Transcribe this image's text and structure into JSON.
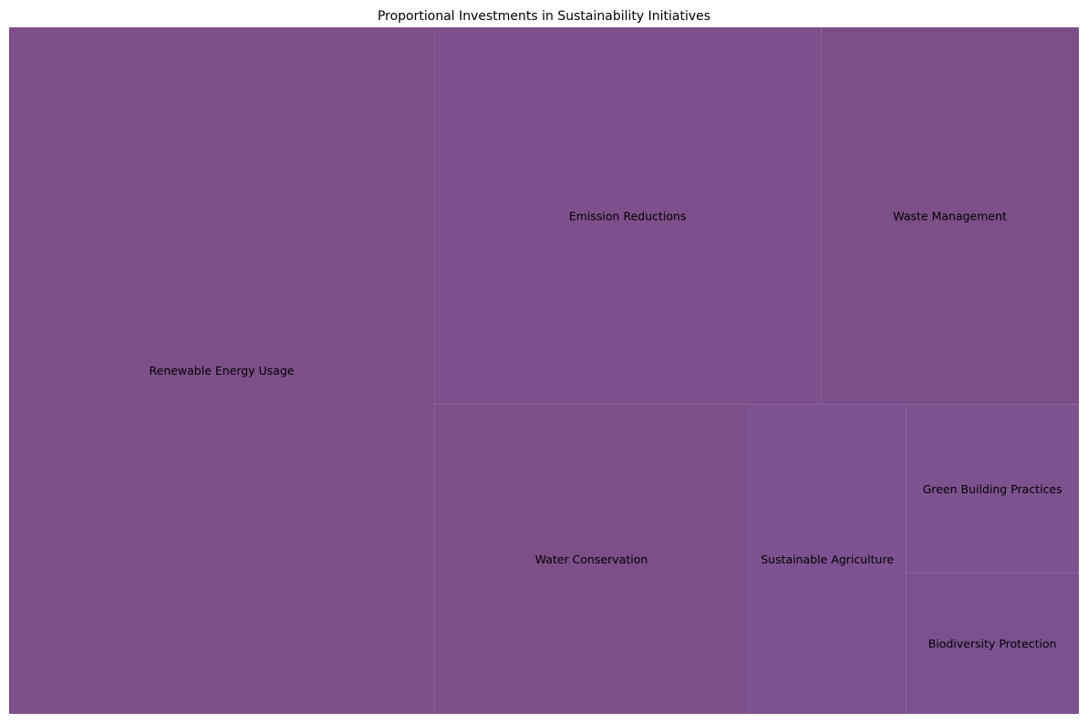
{
  "chart_data": {
    "type": "treemap",
    "title": "Proportional Investments in Sustainability Initiatives",
    "items": [
      {
        "label": "Renewable Energy Usage",
        "value": 3000,
        "color": "#7e4f88"
      },
      {
        "label": "Emission Reductions",
        "value": 1500,
        "color": "#7e4f8a"
      },
      {
        "label": "Waste Management",
        "value": 1000,
        "color": "#7c4f89"
      },
      {
        "label": "Water Conservation",
        "value": 1000,
        "color": "#7c4f89"
      },
      {
        "label": "Sustainable Agriculture",
        "value": 500,
        "color": "#7d5290"
      },
      {
        "label": "Green Building Practices",
        "value": 300,
        "color": "#7c528f"
      },
      {
        "label": "Biodiversity Protection",
        "value": 250,
        "color": "#7b5290"
      }
    ]
  }
}
